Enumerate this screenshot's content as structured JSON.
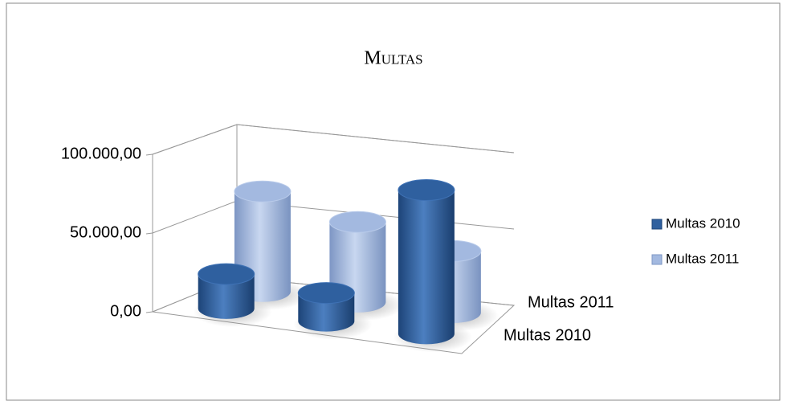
{
  "chart_data": {
    "type": "bar3d-cylinder",
    "title": "Multas",
    "categories": [
      null,
      null,
      null
    ],
    "series": [
      {
        "name": "Multas 2010",
        "color": "#2f609f",
        "values": [
          22000,
          18000,
          92000
        ]
      },
      {
        "name": "Multas 2011",
        "color": "#a3b9e0",
        "values": [
          65000,
          52000,
          40000
        ]
      }
    ],
    "ylim": [
      0,
      100000
    ],
    "yticks": [
      {
        "value": 0,
        "label": "0,00"
      },
      {
        "value": 50000,
        "label": "50.000,00"
      },
      {
        "value": 100000,
        "label": "100.000,00"
      }
    ],
    "grid": true,
    "legend": "right"
  }
}
